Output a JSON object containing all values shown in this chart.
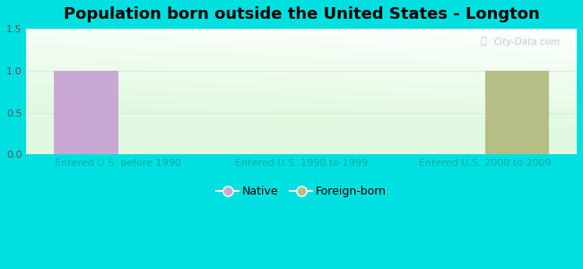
{
  "title": "Population born outside the United States - Longton",
  "categories": [
    "Entered U.S. before 1990",
    "Entered U.S. 1990 to 1999",
    "Entered U.S. 2000 to 2009"
  ],
  "native_values": [
    1,
    0,
    0
  ],
  "foreign_values": [
    0,
    0,
    1
  ],
  "native_color": "#c9a8d4",
  "foreign_color": "#b5bf85",
  "ylim": [
    0,
    1.5
  ],
  "yticks": [
    0,
    0.5,
    1,
    1.5
  ],
  "background_color": "#00e0e0",
  "bar_width": 0.35,
  "title_fontsize": 13,
  "tick_fontsize": 8,
  "legend_fontsize": 9,
  "watermark_text": "City-Data.com",
  "native_label": "Native",
  "foreign_label": "Foreign-born",
  "xtick_color": "#00aaaa",
  "ytick_color": "#555555",
  "grid_color": "#e0ece0"
}
